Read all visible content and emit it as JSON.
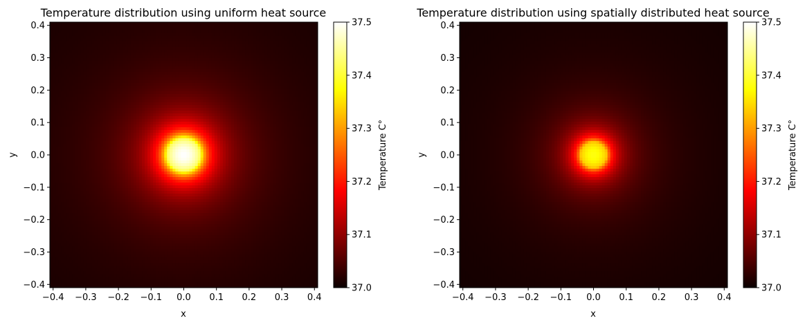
{
  "chart_data": [
    {
      "type": "heatmap",
      "title": "Temperature distribution using uniform heat source",
      "xlabel": "x",
      "ylabel": "y",
      "xlim": [
        -0.41,
        0.41
      ],
      "ylim": [
        -0.41,
        0.41
      ],
      "xticks": [
        -0.4,
        -0.3,
        -0.2,
        -0.1,
        0.0,
        0.1,
        0.2,
        0.3,
        0.4
      ],
      "yticks": [
        -0.4,
        -0.3,
        -0.2,
        -0.1,
        0.0,
        0.1,
        0.2,
        0.3,
        0.4
      ],
      "xtick_labels": [
        "−0.4",
        "−0.3",
        "−0.2",
        "−0.1",
        "0.0",
        "0.1",
        "0.2",
        "0.3",
        "0.4"
      ],
      "ytick_labels": [
        "−0.4",
        "−0.3",
        "−0.2",
        "−0.1",
        "0.0",
        "0.1",
        "0.2",
        "0.3",
        "0.4"
      ],
      "colormap": "hot",
      "colorbar": {
        "label": "Temperature C°",
        "range": [
          37.0,
          37.5
        ],
        "ticks": [
          37.0,
          37.1,
          37.2,
          37.3,
          37.4,
          37.5
        ],
        "tick_labels": [
          "37.0",
          "37.1",
          "37.2",
          "37.3",
          "37.4",
          "37.5"
        ]
      },
      "field": {
        "center": [
          0.0,
          0.0
        ],
        "source_radius": 0.05,
        "peak_temperature": 37.5,
        "temperature_at_edge_of_source": 37.42,
        "background_temperature": 37.0
      }
    },
    {
      "type": "heatmap",
      "title": "Temperature distribution using spatially distributed heat source",
      "xlabel": "x",
      "ylabel": "y",
      "xlim": [
        -0.41,
        0.41
      ],
      "ylim": [
        -0.41,
        0.41
      ],
      "xticks": [
        -0.4,
        -0.3,
        -0.2,
        -0.1,
        0.0,
        0.1,
        0.2,
        0.3,
        0.4
      ],
      "yticks": [
        -0.4,
        -0.3,
        -0.2,
        -0.1,
        0.0,
        0.1,
        0.2,
        0.3,
        0.4
      ],
      "xtick_labels": [
        "−0.4",
        "−0.3",
        "−0.2",
        "−0.1",
        "0.0",
        "0.1",
        "0.2",
        "0.3",
        "0.4"
      ],
      "ytick_labels": [
        "−0.4",
        "−0.3",
        "−0.2",
        "−0.1",
        "0.0",
        "0.1",
        "0.2",
        "0.3",
        "0.4"
      ],
      "colormap": "hot",
      "colorbar": {
        "label": "Temperature C°",
        "range": [
          37.0,
          37.5
        ],
        "ticks": [
          37.0,
          37.1,
          37.2,
          37.3,
          37.4,
          37.5
        ],
        "tick_labels": [
          "37.0",
          "37.1",
          "37.2",
          "37.3",
          "37.4",
          "37.5"
        ]
      },
      "field": {
        "center": [
          0.0,
          0.0
        ],
        "source_radius": 0.04,
        "peak_temperature": 37.38,
        "temperature_at_edge_of_source": 37.33,
        "background_temperature": 37.0
      }
    }
  ]
}
